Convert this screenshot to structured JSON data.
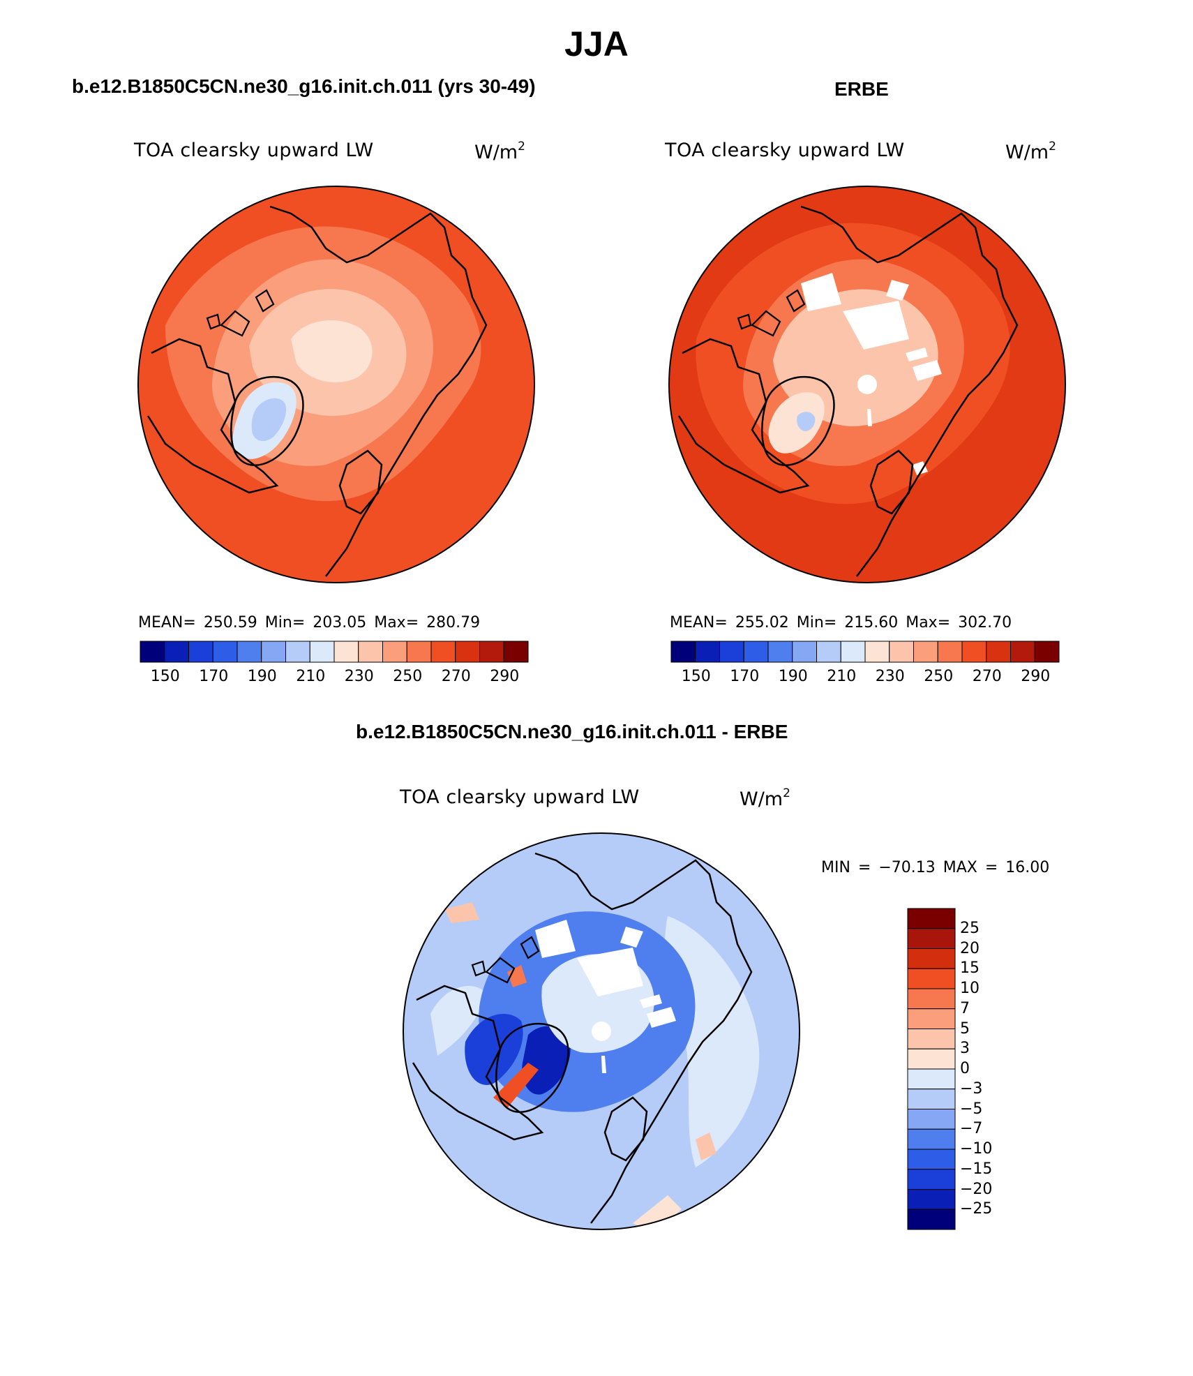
{
  "figure": {
    "title": "JJA"
  },
  "panels": [
    {
      "id": "model",
      "title": "b.e12.B1850C5CN.ne30_g16.init.ch.011 (yrs 30-49)",
      "variable": "TOA clearsky upward LW",
      "units_base": "W/m",
      "units_exp": "2",
      "stats": "MEAN= 250.59   Min= 203.05   Max= 280.79",
      "colorbar_labels": [
        "150",
        "170",
        "190",
        "210",
        "230",
        "250",
        "270",
        "290"
      ]
    },
    {
      "id": "obs",
      "title": "ERBE",
      "variable": "TOA clearsky upward LW",
      "units_base": "W/m",
      "units_exp": "2",
      "stats": "MEAN= 255.02   Min= 215.60   Max= 302.70",
      "colorbar_labels": [
        "150",
        "170",
        "190",
        "210",
        "230",
        "250",
        "270",
        "290"
      ]
    },
    {
      "id": "diff",
      "title": "b.e12.B1850C5CN.ne30_g16.init.ch.011 - ERBE",
      "variable": "TOA clearsky upward LW",
      "units_base": "W/m",
      "units_exp": "2",
      "stats": "MIN = −70.13 MAX =   16.00",
      "colorbar_labels": [
        "25",
        "20",
        "15",
        "10",
        "7",
        "5",
        "3",
        "0",
        "−3",
        "−5",
        "−7",
        "−10",
        "−15",
        "−20",
        "−25"
      ]
    }
  ],
  "colors": {
    "abs_scale": [
      "#00007a",
      "#0a1fb5",
      "#1b3fd9",
      "#2e5ee8",
      "#4f7fee",
      "#86a8f4",
      "#b5ccf8",
      "#dbe9fa",
      "#fde3d4",
      "#fcc4aa",
      "#fa9e7b",
      "#f7774f",
      "#f04f24",
      "#d93210",
      "#b41a0b",
      "#7a0000"
    ],
    "diff_scale": [
      "#7a0000",
      "#a8150a",
      "#d32f0e",
      "#f04f24",
      "#f7774f",
      "#fa9e7b",
      "#fcc4aa",
      "#fde3d4",
      "#dbe9fa",
      "#b5ccf8",
      "#86a8f4",
      "#4f7fee",
      "#2e5ee8",
      "#1b3fd9",
      "#0a1fb5",
      "#00007a"
    ],
    "missing": "#ffffff"
  }
}
